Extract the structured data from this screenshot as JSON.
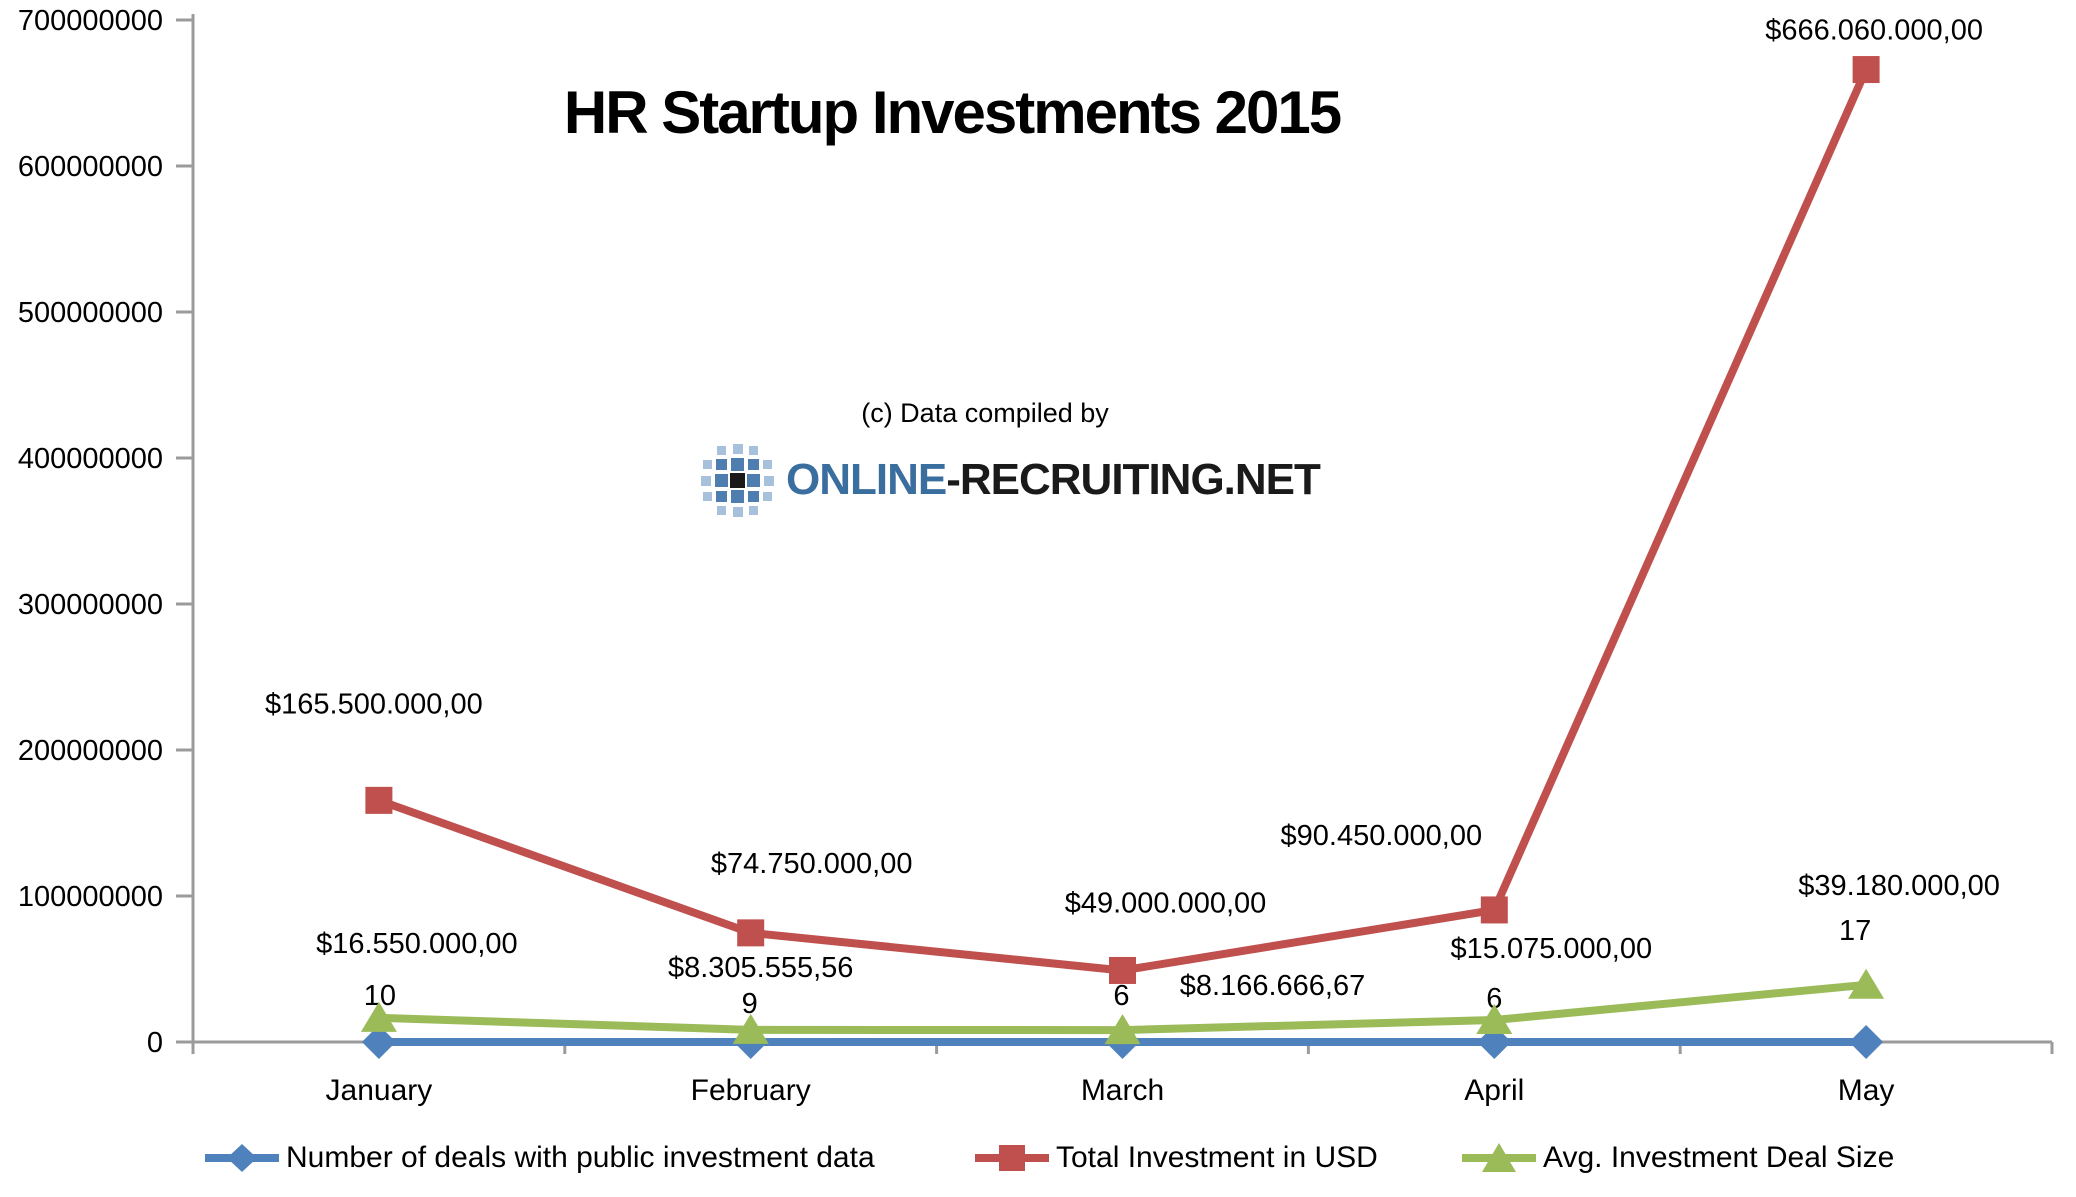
{
  "title": "HR Startup Investments 2015",
  "watermark": {
    "credit": "(c) Data compiled by",
    "brand_blue": "ONLINE",
    "brand_dark": "-RECRUITING.NET"
  },
  "colors": {
    "deals_blue": "#4F81BD",
    "total_red": "#C0504D",
    "avg_green": "#9BBB59",
    "axis_gray": "#9B9B9B",
    "brand_blue": "#3A6E9F",
    "brand_dark": "#1A1A1A"
  },
  "chart_data": {
    "type": "line",
    "title": "HR Startup Investments 2015",
    "categories": [
      "January",
      "February",
      "March",
      "April",
      "May"
    ],
    "y_axis": {
      "min": 0,
      "max": 700000000,
      "tick_step": 100000000,
      "tick_labels": [
        "0",
        "100000000",
        "200000000",
        "300000000",
        "400000000",
        "500000000",
        "600000000",
        "700000000"
      ]
    },
    "grid": false,
    "legend_position": "bottom",
    "series": [
      {
        "name": "Number of deals with public investment data",
        "color": "#4F81BD",
        "marker": "diamond",
        "values": [
          10,
          9,
          6,
          6,
          17
        ],
        "point_labels": [
          "10",
          "9",
          "6",
          "6",
          "17"
        ]
      },
      {
        "name": "Total Investment in USD",
        "color": "#C0504D",
        "marker": "square",
        "values": [
          165500000,
          74750000,
          49000000,
          90450000,
          666060000
        ],
        "point_labels": [
          "$165.500.000,00",
          "$74.750.000,00",
          "$49.000.000,00",
          "$90.450.000,00",
          "$666.060.000,00"
        ]
      },
      {
        "name": "Avg. Investment Deal Size",
        "color": "#9BBB59",
        "marker": "triangle",
        "values": [
          16550000,
          8305555.56,
          8166666.67,
          15075000,
          39180000
        ],
        "point_labels": [
          "$16.550.000,00",
          "$8.305.555,56",
          "$8.166.666,67",
          "$15.075.000,00",
          "$39.180.000,00"
        ]
      }
    ]
  }
}
